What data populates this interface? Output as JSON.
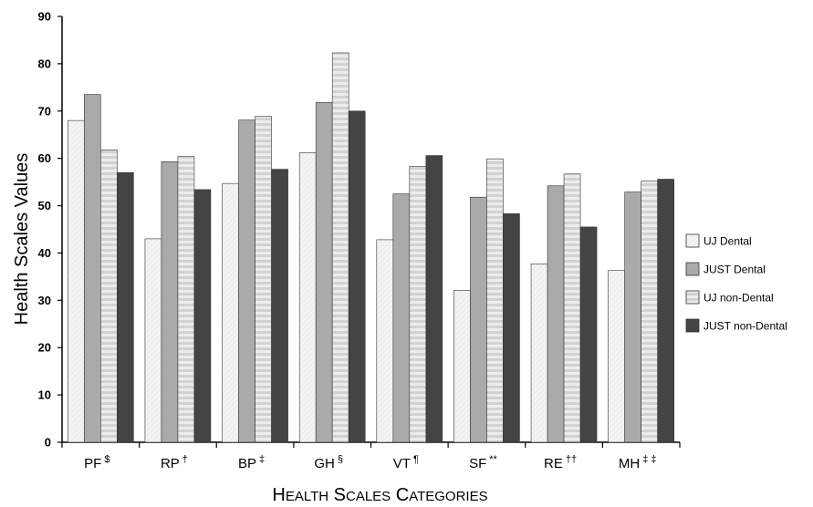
{
  "chart_data": {
    "type": "bar",
    "title": "",
    "ylabel": "Health Scales Values",
    "xlabel": "Health Scales Categories",
    "ylim": [
      0,
      90
    ],
    "yticks": [
      0,
      10,
      20,
      30,
      40,
      50,
      60,
      70,
      80,
      90
    ],
    "categories": [
      {
        "label": "PF",
        "sup": "$"
      },
      {
        "label": "RP",
        "sup": "†"
      },
      {
        "label": "BP",
        "sup": "‡"
      },
      {
        "label": "GH",
        "sup": "§"
      },
      {
        "label": "VT",
        "sup": "¶"
      },
      {
        "label": "SF",
        "sup": "**"
      },
      {
        "label": "RE",
        "sup": "††"
      },
      {
        "label": "MH",
        "sup": "‡ ‡"
      }
    ],
    "series": [
      {
        "name": "UJ Dental",
        "color": "#eeeeee",
        "values": [
          68,
          43,
          54.7,
          61.2,
          42.8,
          32.1,
          37.7,
          36.3
        ]
      },
      {
        "name": "JUST Dental",
        "color": "#aaaaaa",
        "values": [
          73.5,
          59.3,
          68.1,
          71.8,
          52.5,
          51.8,
          54.2,
          52.9
        ]
      },
      {
        "name": "UJ non-Dental",
        "color": "#c8c8c8",
        "pattern": "striped",
        "values": [
          61.8,
          60.4,
          68.9,
          82.3,
          58.3,
          59.9,
          56.7,
          55.2
        ]
      },
      {
        "name": "JUST non-Dental",
        "color": "#444444",
        "values": [
          57,
          53.4,
          57.7,
          70,
          60.6,
          48.3,
          45.5,
          55.6
        ]
      }
    ],
    "legend_position": "right",
    "grid": false
  }
}
